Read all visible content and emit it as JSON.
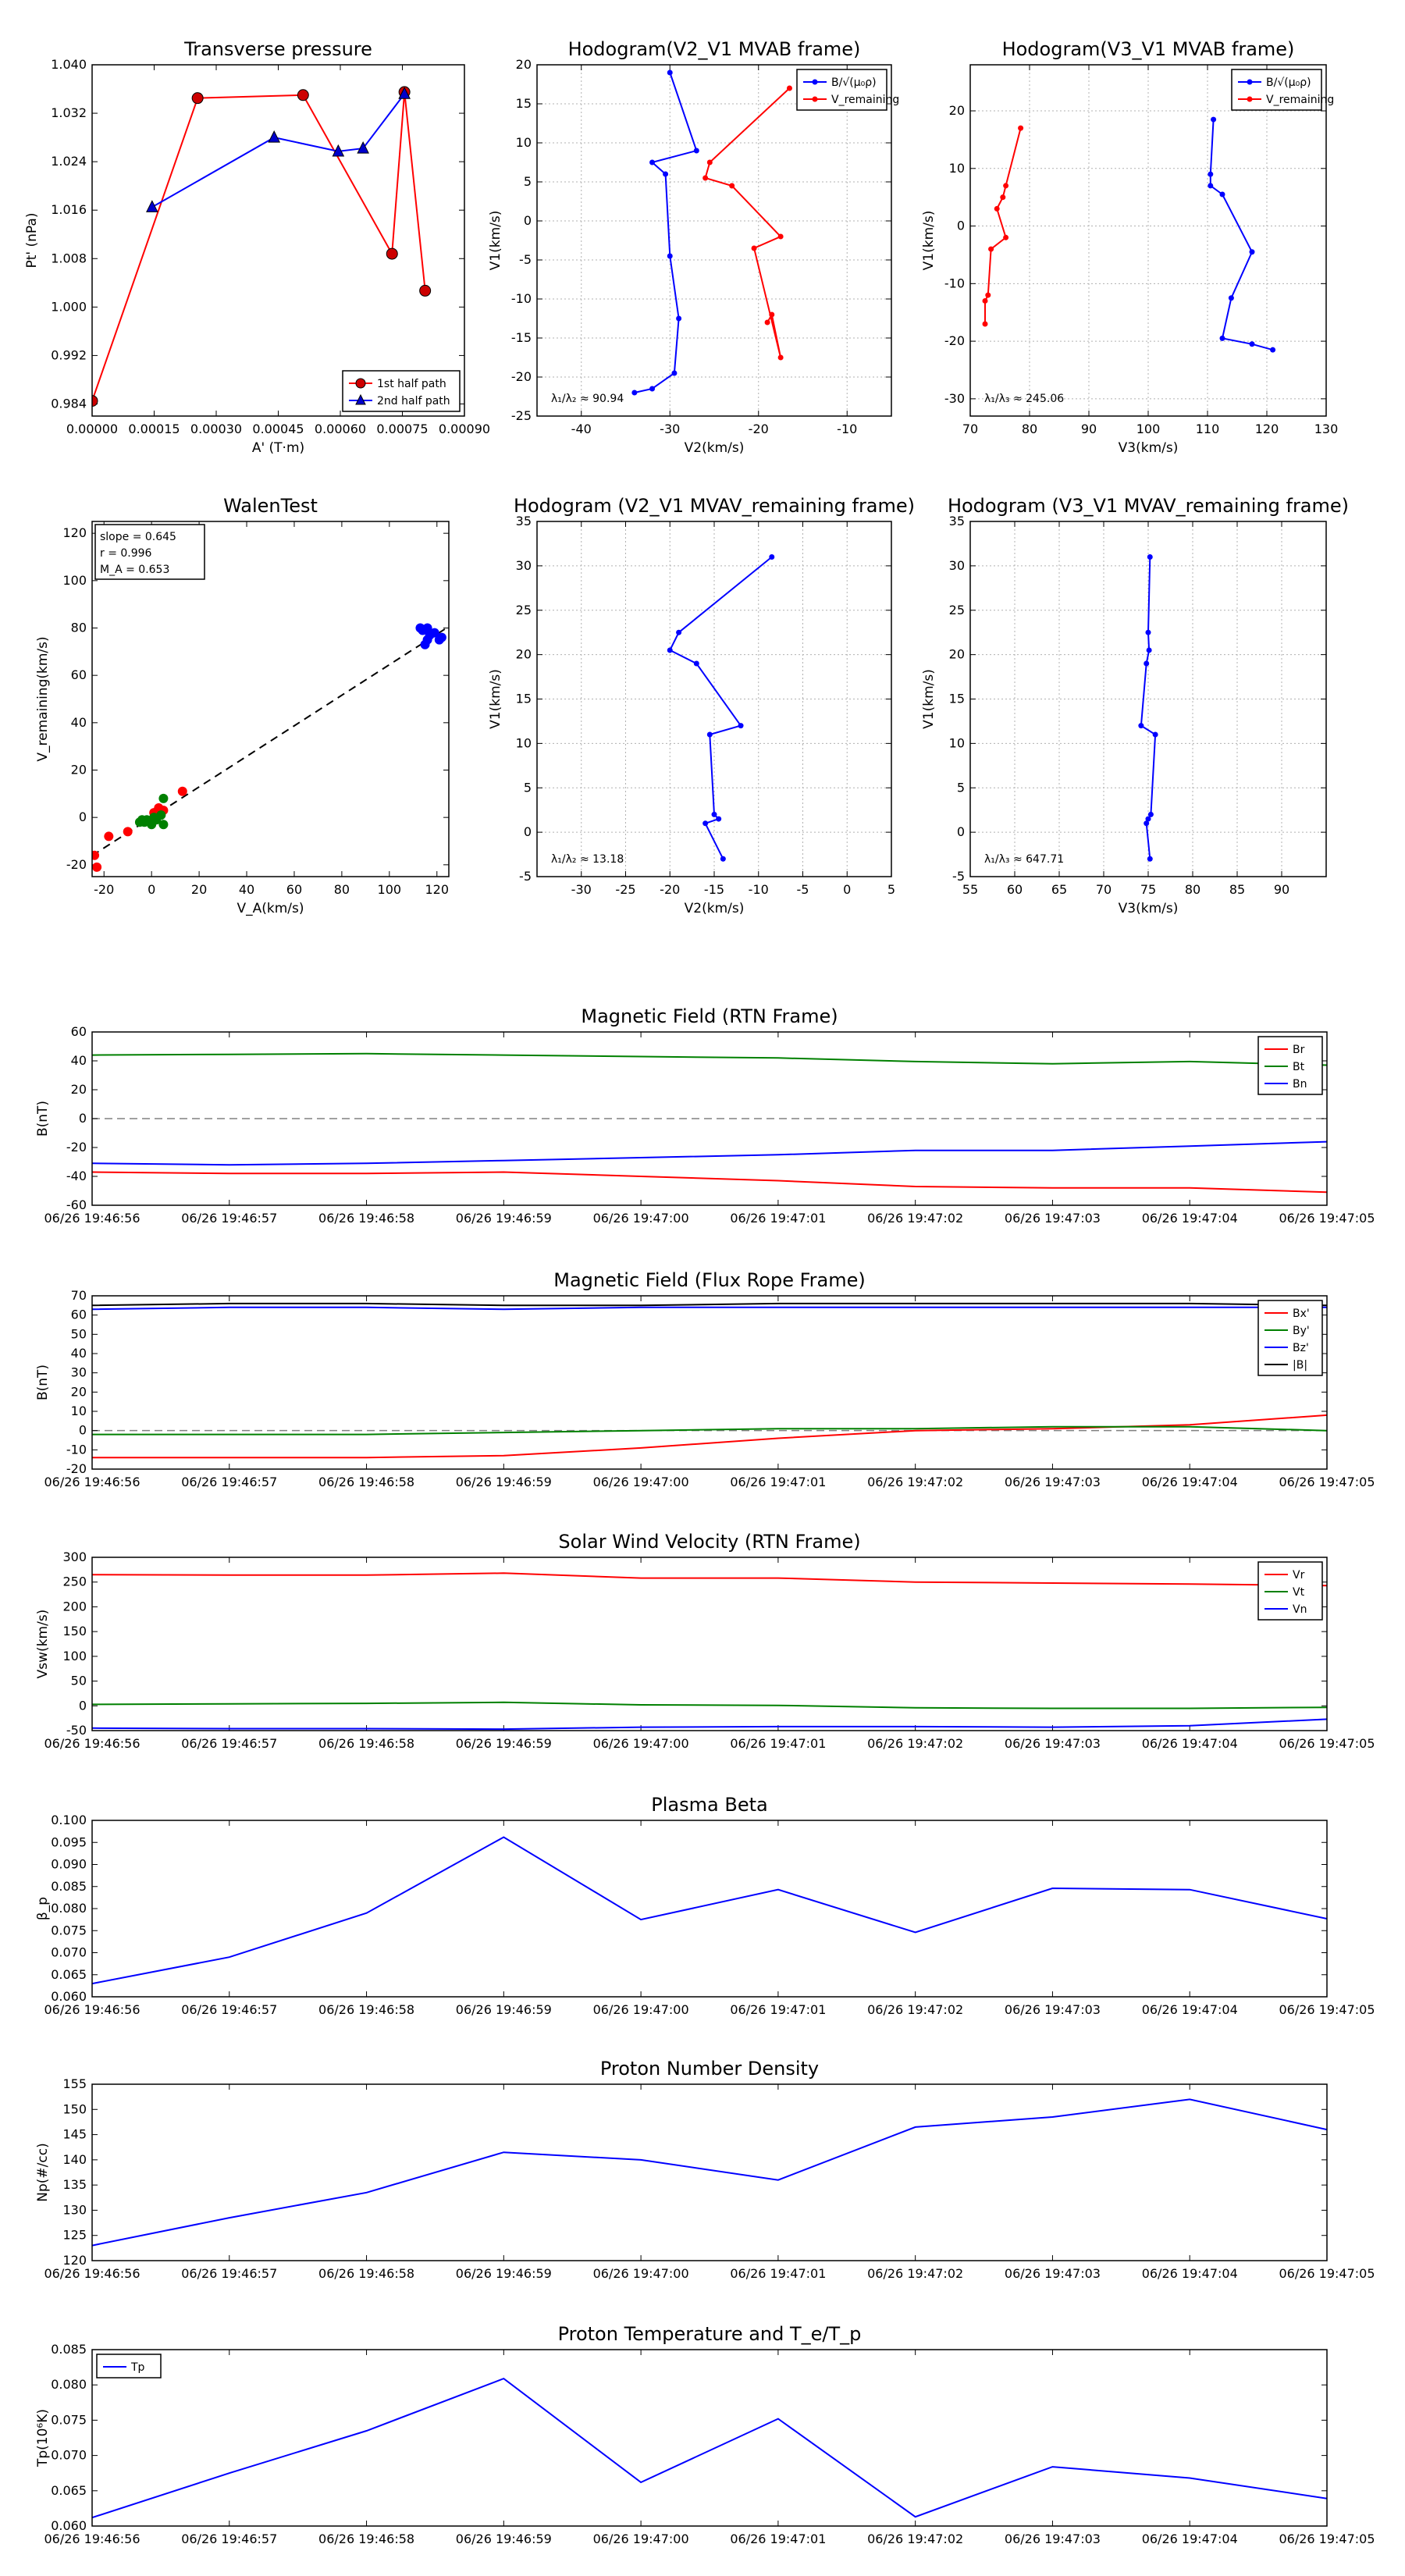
{
  "chart_data": [
    {
      "id": "transverse_pressure",
      "type": "line",
      "title": "Transverse pressure",
      "xlabel": "A' (T·m)",
      "ylabel": "Pt' (nPa)",
      "xlim": [
        0.0,
        0.0009
      ],
      "ylim": [
        0.982,
        1.04
      ],
      "xticks": [
        0.0,
        0.00015,
        0.0003,
        0.00045,
        0.0006,
        0.00075,
        0.0009
      ],
      "xticklabels": [
        "0.00000",
        "0.00015",
        "0.00030",
        "0.00045",
        "0.00060",
        "0.00075",
        "0.00090"
      ],
      "yticks": [
        0.984,
        0.992,
        1.0,
        1.008,
        1.016,
        1.024,
        1.032,
        1.04
      ],
      "yticklabels": [
        "0.984",
        "0.992",
        "1.000",
        "1.008",
        "1.016",
        "1.024",
        "1.032",
        "1.040"
      ],
      "grid": false,
      "legend": "lower-right",
      "series": [
        {
          "name": "1st half path",
          "color": "#ff0000",
          "marker": "circle",
          "x": [
            0.0,
            0.000255,
            0.00051,
            0.000725,
            0.000755,
            0.000805
          ],
          "y": [
            0.9845,
            1.0345,
            1.035,
            1.0088,
            1.0355,
            1.0027
          ]
        },
        {
          "name": "2nd half path",
          "color": "#0000ff",
          "marker": "triangle",
          "x": [
            0.000145,
            0.00044,
            0.000595,
            0.000655,
            0.000755
          ],
          "y": [
            1.0165,
            1.028,
            1.0257,
            1.0262,
            1.0352
          ]
        }
      ]
    },
    {
      "id": "hodogram_v2_mvab",
      "type": "line",
      "title": "Hodogram(V2_V1 MVAB frame)",
      "xlabel": "V2(km/s)",
      "ylabel": "V1(km/s)",
      "xlim": [
        -45,
        -5
      ],
      "ylim": [
        -25,
        20
      ],
      "xticks": [
        -40,
        -30,
        -20,
        -10
      ],
      "yticks": [
        -25,
        -20,
        -15,
        -10,
        -5,
        0,
        5,
        10,
        15,
        20
      ],
      "grid": true,
      "legend": "top-right",
      "annotation": "λ₁/λ₂ ≈ 90.94",
      "series": [
        {
          "name": "B/√(μ₀ρ)",
          "color": "#0000ff",
          "x": [
            -30,
            -27,
            -32,
            -30.5,
            -30,
            -29,
            -29.5,
            -32,
            -34
          ],
          "y": [
            19,
            9,
            7.5,
            6,
            -4.5,
            -12.5,
            -19.5,
            -21.5,
            -22
          ]
        },
        {
          "name": "V_remaining",
          "color": "#ff0000",
          "x": [
            -16.5,
            -25.5,
            -26,
            -23,
            -17.5,
            -20.5,
            -17.5,
            -18.5,
            -19
          ],
          "y": [
            17,
            7.5,
            5.5,
            4.5,
            -2,
            -3.5,
            -17.5,
            -12,
            -13
          ]
        }
      ]
    },
    {
      "id": "hodogram_v3_mvab",
      "type": "line",
      "title": "Hodogram(V3_V1 MVAB frame)",
      "xlabel": "V3(km/s)",
      "ylabel": "V1(km/s)",
      "xlim": [
        70,
        130
      ],
      "ylim": [
        -33,
        28
      ],
      "xticks": [
        70,
        80,
        90,
        100,
        110,
        120,
        130
      ],
      "yticks": [
        -30,
        -20,
        -10,
        0,
        10,
        20
      ],
      "grid": true,
      "legend": "top-right",
      "annotation": "λ₁/λ₃ ≈ 245.06",
      "series": [
        {
          "name": "B/√(μ₀ρ)",
          "color": "#0000ff",
          "x": [
            111,
            110.5,
            110.5,
            112.5,
            117.5,
            114,
            112.5,
            117.5,
            121
          ],
          "y": [
            18.5,
            9,
            7,
            5.5,
            -4.5,
            -12.5,
            -19.5,
            -20.5,
            -21.5
          ]
        },
        {
          "name": "V_remaining",
          "color": "#ff0000",
          "x": [
            78.5,
            76,
            75.5,
            74.5,
            76,
            73.5,
            73,
            72.5,
            72.5
          ],
          "y": [
            17,
            7,
            5,
            3,
            -2,
            -4,
            -12,
            -13,
            -17
          ]
        }
      ]
    },
    {
      "id": "walen_test",
      "type": "scatter",
      "title": "WalenTest",
      "xlabel": "V_A(km/s)",
      "ylabel": "V_remaining(km/s)",
      "xlim": [
        -25,
        125
      ],
      "ylim": [
        -25,
        125
      ],
      "xticks": [
        -20,
        0,
        20,
        40,
        60,
        80,
        100,
        120
      ],
      "yticks": [
        -20,
        0,
        20,
        40,
        60,
        80,
        100,
        120
      ],
      "grid": false,
      "fit": {
        "slope": 0.645,
        "intercept": 0.0,
        "line_x": [
          -25,
          125
        ]
      },
      "stats_box": [
        "slope = 0.645",
        "r = 0.996",
        "M_A = 0.653"
      ],
      "series": [
        {
          "name": "red",
          "color": "#ff0000",
          "x": [
            -24,
            -23,
            -18,
            -10,
            1,
            3,
            5,
            13
          ],
          "y": [
            -16,
            -21,
            -8,
            -6,
            2,
            4,
            3,
            11
          ]
        },
        {
          "name": "green",
          "color": "#008000",
          "x": [
            -5,
            -4,
            -3,
            -2,
            0,
            1,
            2,
            4,
            5,
            5
          ],
          "y": [
            -2,
            -1,
            -2,
            -1,
            -3,
            0,
            -1,
            1,
            -3,
            8
          ]
        },
        {
          "name": "blue",
          "color": "#0000ff",
          "x": [
            113,
            114,
            115,
            116,
            116,
            117,
            119,
            121,
            122
          ],
          "y": [
            80,
            79,
            73,
            75,
            80,
            77,
            78,
            75,
            76
          ]
        }
      ]
    },
    {
      "id": "hodogram_v2_mvav",
      "type": "line",
      "title": "Hodogram (V2_V1 MVAV_remaining frame)",
      "xlabel": "V2(km/s)",
      "ylabel": "V1(km/s)",
      "xlim": [
        -35,
        5
      ],
      "ylim": [
        -5,
        35
      ],
      "xticks": [
        -30,
        -25,
        -20,
        -15,
        -10,
        -5,
        0,
        5
      ],
      "yticks": [
        -5,
        0,
        5,
        10,
        15,
        20,
        25,
        30,
        35
      ],
      "grid": true,
      "annotation": "λ₁/λ₂ ≈ 13.18",
      "series": [
        {
          "name": "blue",
          "color": "#0000ff",
          "x": [
            -8.5,
            -19,
            -20,
            -17,
            -12,
            -15.5,
            -15,
            -14.5,
            -16,
            -14
          ],
          "y": [
            31,
            22.5,
            20.5,
            19,
            12,
            11,
            2,
            1.5,
            1,
            -3
          ]
        }
      ]
    },
    {
      "id": "hodogram_v3_mvav",
      "type": "line",
      "title": "Hodogram (V3_V1 MVAV_remaining frame)",
      "xlabel": "V3(km/s)",
      "ylabel": "V1(km/s)",
      "xlim": [
        55,
        95
      ],
      "ylim": [
        -5,
        35
      ],
      "xticks": [
        55,
        60,
        65,
        70,
        75,
        80,
        85,
        90
      ],
      "yticks": [
        -5,
        0,
        5,
        10,
        15,
        20,
        25,
        30,
        35
      ],
      "grid": true,
      "annotation": "λ₁/λ₃ ≈ 647.71",
      "series": [
        {
          "name": "blue",
          "color": "#0000ff",
          "x": [
            75.2,
            75,
            75.1,
            74.8,
            74.2,
            75.8,
            75.3,
            75,
            74.8,
            75.2
          ],
          "y": [
            31,
            22.5,
            20.5,
            19,
            12,
            11,
            2,
            1.5,
            1,
            -3
          ]
        }
      ]
    },
    {
      "id": "mag_rtn",
      "type": "line",
      "title": "Magnetic Field (RTN Frame)",
      "xlabel": "",
      "ylabel": "B(nT)",
      "xlim": [
        0,
        9
      ],
      "ylim": [
        -60,
        60
      ],
      "yticks": [
        -60,
        -40,
        -20,
        0,
        20,
        40,
        60
      ],
      "zero_line": true,
      "legend": "top-right",
      "series": [
        {
          "name": "Br",
          "color": "#ff0000",
          "values": [
            -37,
            -38,
            -38,
            -37,
            -40,
            -43,
            -47,
            -48,
            -48,
            -51
          ]
        },
        {
          "name": "Bt",
          "color": "#008000",
          "values": [
            44,
            44.5,
            45,
            44,
            43,
            42,
            39.5,
            38,
            39.5,
            37
          ]
        },
        {
          "name": "Bn",
          "color": "#0000ff",
          "values": [
            -31,
            -32,
            -31,
            -29,
            -27,
            -25,
            -22,
            -22,
            -19,
            -16
          ]
        }
      ]
    },
    {
      "id": "mag_fluxrope",
      "type": "line",
      "title": "Magnetic Field (Flux Rope Frame)",
      "xlabel": "",
      "ylabel": "B(nT)",
      "xlim": [
        0,
        9
      ],
      "ylim": [
        -20,
        70
      ],
      "yticks": [
        -20,
        -10,
        0,
        10,
        20,
        30,
        40,
        50,
        60,
        70
      ],
      "zero_line": true,
      "legend": "top-right",
      "series": [
        {
          "name": "Bx'",
          "color": "#ff0000",
          "values": [
            -14,
            -14,
            -14,
            -13,
            -9,
            -4,
            0,
            1,
            3,
            8
          ]
        },
        {
          "name": "By'",
          "color": "#008000",
          "values": [
            -2,
            -2,
            -2,
            -1,
            0,
            1,
            1,
            2,
            2,
            0
          ]
        },
        {
          "name": "Bz'",
          "color": "#0000ff",
          "values": [
            63,
            64,
            64,
            63,
            64,
            64,
            64,
            64,
            64,
            64
          ]
        },
        {
          "name": "|B|",
          "color": "#000000",
          "values": [
            65,
            66,
            66,
            65,
            65,
            66,
            66,
            66,
            66,
            65
          ]
        }
      ]
    },
    {
      "id": "sw_velocity",
      "type": "line",
      "title": "Solar Wind Velocity (RTN Frame)",
      "xlabel": "",
      "ylabel": "Vsw(km/s)",
      "xlim": [
        0,
        9
      ],
      "ylim": [
        -50,
        300
      ],
      "yticks": [
        -50,
        0,
        50,
        100,
        150,
        200,
        250,
        300
      ],
      "legend": "top-right",
      "series": [
        {
          "name": "Vr",
          "color": "#ff0000",
          "values": [
            265,
            264,
            264,
            268,
            258,
            258,
            250,
            248,
            246,
            243
          ]
        },
        {
          "name": "Vt",
          "color": "#008000",
          "values": [
            3,
            4,
            5,
            7,
            2,
            1,
            -4,
            -5,
            -5,
            -3
          ]
        },
        {
          "name": "Vn",
          "color": "#0000ff",
          "values": [
            -45,
            -46,
            -46,
            -47,
            -43,
            -42,
            -42,
            -43,
            -40,
            -27
          ]
        }
      ]
    },
    {
      "id": "plasma_beta",
      "type": "line",
      "title": "Plasma Beta",
      "xlabel": "",
      "ylabel": "β_p",
      "xlim": [
        0,
        9
      ],
      "ylim": [
        0.06,
        0.1
      ],
      "yticks": [
        0.06,
        0.065,
        0.07,
        0.075,
        0.08,
        0.085,
        0.09,
        0.095,
        0.1
      ],
      "yticklabels": [
        "0.060",
        "0.065",
        "0.070",
        "0.075",
        "0.080",
        "0.085",
        "0.090",
        "0.095",
        "0.100"
      ],
      "series": [
        {
          "name": "beta",
          "color": "#0000ff",
          "values": [
            0.063,
            0.069,
            0.079,
            0.0962,
            0.0775,
            0.0843,
            0.0746,
            0.0846,
            0.0843,
            0.0777
          ]
        }
      ]
    },
    {
      "id": "proton_density",
      "type": "line",
      "title": "Proton Number Density",
      "xlabel": "",
      "ylabel": "Np(#/cc)",
      "xlim": [
        0,
        9
      ],
      "ylim": [
        120,
        155
      ],
      "yticks": [
        120,
        125,
        130,
        135,
        140,
        145,
        150,
        155
      ],
      "series": [
        {
          "name": "Np",
          "color": "#0000ff",
          "values": [
            123,
            128.5,
            133.5,
            141.5,
            140,
            136,
            146.5,
            148.5,
            152,
            146
          ]
        }
      ]
    },
    {
      "id": "proton_temperature",
      "type": "line",
      "title": "Proton Temperature and T_e/T_p",
      "xlabel": "",
      "ylabel": "Tp(10⁶K)",
      "xlim": [
        0,
        9
      ],
      "ylim": [
        0.06,
        0.085
      ],
      "yticks": [
        0.06,
        0.065,
        0.07,
        0.075,
        0.08,
        0.085
      ],
      "yticklabels": [
        "0.060",
        "0.065",
        "0.070",
        "0.075",
        "0.080",
        "0.085"
      ],
      "legend": "top-left",
      "series": [
        {
          "name": "Tp",
          "color": "#0000ff",
          "values": [
            0.0612,
            0.0675,
            0.0735,
            0.0809,
            0.0662,
            0.0752,
            0.0613,
            0.0684,
            0.0668,
            0.0639
          ]
        }
      ]
    }
  ],
  "time_ticks": [
    "06/26 19:46:56",
    "06/26 19:46:57",
    "06/26 19:46:58",
    "06/26 19:46:59",
    "06/26 19:47:00",
    "06/26 19:47:01",
    "06/26 19:47:02",
    "06/26 19:47:03",
    "06/26 19:47:04",
    "06/26 19:47:05"
  ]
}
